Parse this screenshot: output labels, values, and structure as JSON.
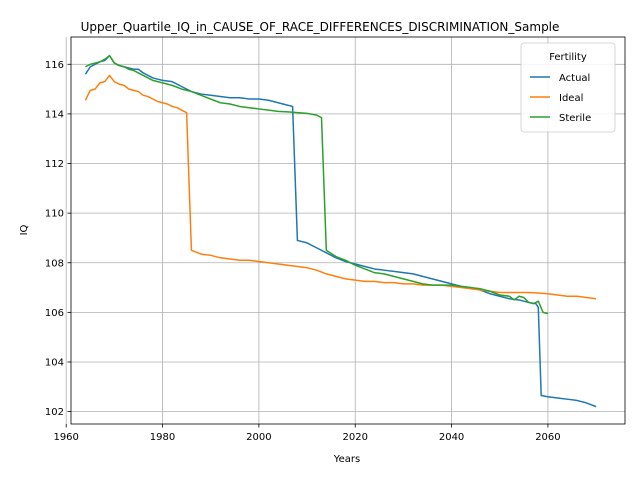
{
  "chart_data": {
    "type": "line",
    "title": "Upper_Quartile_IQ_in_CAUSE_OF_RACE_DIFFERENCES_DISCRIMINATION_Sample",
    "xlabel": "Years",
    "ylabel": "IQ",
    "xlim": [
      1961,
      2076
    ],
    "ylim": [
      101.5,
      117.1
    ],
    "xticks": [
      1960,
      1980,
      2000,
      2020,
      2040,
      2060
    ],
    "yticks": [
      102,
      104,
      106,
      108,
      110,
      112,
      114,
      116
    ],
    "grid": true,
    "legend": {
      "title": "Fertility",
      "placement": "top-right"
    },
    "series": [
      {
        "name": "Actual",
        "color": "#1f77b4",
        "points": [
          [
            1964,
            115.6
          ],
          [
            1965,
            115.9
          ],
          [
            1966,
            116.0
          ],
          [
            1967,
            116.1
          ],
          [
            1968,
            116.15
          ],
          [
            1969,
            116.35
          ],
          [
            1970,
            116.05
          ],
          [
            1971,
            115.95
          ],
          [
            1972,
            115.9
          ],
          [
            1973,
            115.85
          ],
          [
            1974,
            115.8
          ],
          [
            1975,
            115.8
          ],
          [
            1976,
            115.65
          ],
          [
            1977,
            115.55
          ],
          [
            1978,
            115.45
          ],
          [
            1979,
            115.4
          ],
          [
            1980,
            115.35
          ],
          [
            1982,
            115.3
          ],
          [
            1984,
            115.1
          ],
          [
            1986,
            114.9
          ],
          [
            1988,
            114.8
          ],
          [
            1990,
            114.75
          ],
          [
            1992,
            114.7
          ],
          [
            1994,
            114.65
          ],
          [
            1996,
            114.65
          ],
          [
            1998,
            114.6
          ],
          [
            2000,
            114.6
          ],
          [
            2002,
            114.55
          ],
          [
            2004,
            114.45
          ],
          [
            2006,
            114.35
          ],
          [
            2007,
            114.3
          ],
          [
            2008,
            108.9
          ],
          [
            2010,
            108.8
          ],
          [
            2012,
            108.6
          ],
          [
            2014,
            108.4
          ],
          [
            2016,
            108.2
          ],
          [
            2018,
            108.05
          ],
          [
            2020,
            107.95
          ],
          [
            2022,
            107.85
          ],
          [
            2024,
            107.75
          ],
          [
            2026,
            107.7
          ],
          [
            2028,
            107.65
          ],
          [
            2030,
            107.6
          ],
          [
            2032,
            107.55
          ],
          [
            2034,
            107.45
          ],
          [
            2036,
            107.35
          ],
          [
            2038,
            107.25
          ],
          [
            2040,
            107.15
          ],
          [
            2042,
            107.05
          ],
          [
            2044,
            107.0
          ],
          [
            2046,
            106.9
          ],
          [
            2048,
            106.75
          ],
          [
            2050,
            106.65
          ],
          [
            2052,
            106.55
          ],
          [
            2054,
            106.5
          ],
          [
            2056,
            106.4
          ],
          [
            2057.5,
            106.35
          ],
          [
            2058,
            106.2
          ],
          [
            2058.6,
            102.65
          ],
          [
            2060,
            102.6
          ],
          [
            2062,
            102.55
          ],
          [
            2064,
            102.5
          ],
          [
            2066,
            102.45
          ],
          [
            2068,
            102.35
          ],
          [
            2070,
            102.2
          ]
        ]
      },
      {
        "name": "Ideal",
        "color": "#ff7f0e",
        "points": [
          [
            1964,
            114.55
          ],
          [
            1965,
            114.95
          ],
          [
            1966,
            115.0
          ],
          [
            1967,
            115.25
          ],
          [
            1968,
            115.3
          ],
          [
            1969,
            115.55
          ],
          [
            1970,
            115.3
          ],
          [
            1971,
            115.2
          ],
          [
            1972,
            115.15
          ],
          [
            1973,
            115.0
          ],
          [
            1974,
            114.95
          ],
          [
            1975,
            114.9
          ],
          [
            1976,
            114.75
          ],
          [
            1977,
            114.7
          ],
          [
            1978,
            114.6
          ],
          [
            1979,
            114.5
          ],
          [
            1980,
            114.45
          ],
          [
            1981,
            114.4
          ],
          [
            1982,
            114.3
          ],
          [
            1983,
            114.25
          ],
          [
            1984,
            114.15
          ],
          [
            1985,
            114.05
          ],
          [
            1986,
            108.5
          ],
          [
            1988,
            108.35
          ],
          [
            1990,
            108.3
          ],
          [
            1992,
            108.2
          ],
          [
            1994,
            108.15
          ],
          [
            1996,
            108.1
          ],
          [
            1998,
            108.1
          ],
          [
            2000,
            108.05
          ],
          [
            2002,
            108.0
          ],
          [
            2004,
            107.95
          ],
          [
            2006,
            107.9
          ],
          [
            2008,
            107.85
          ],
          [
            2010,
            107.8
          ],
          [
            2012,
            107.7
          ],
          [
            2014,
            107.55
          ],
          [
            2016,
            107.45
          ],
          [
            2018,
            107.35
          ],
          [
            2020,
            107.3
          ],
          [
            2022,
            107.25
          ],
          [
            2024,
            107.25
          ],
          [
            2026,
            107.2
          ],
          [
            2028,
            107.2
          ],
          [
            2030,
            107.15
          ],
          [
            2032,
            107.15
          ],
          [
            2034,
            107.1
          ],
          [
            2036,
            107.1
          ],
          [
            2038,
            107.1
          ],
          [
            2040,
            107.05
          ],
          [
            2042,
            107.0
          ],
          [
            2044,
            106.95
          ],
          [
            2046,
            106.9
          ],
          [
            2048,
            106.85
          ],
          [
            2050,
            106.8
          ],
          [
            2052,
            106.8
          ],
          [
            2054,
            106.8
          ],
          [
            2056,
            106.8
          ],
          [
            2058,
            106.78
          ],
          [
            2060,
            106.75
          ],
          [
            2062,
            106.7
          ],
          [
            2064,
            106.65
          ],
          [
            2066,
            106.65
          ],
          [
            2068,
            106.6
          ],
          [
            2070,
            106.55
          ]
        ]
      },
      {
        "name": "Sterile",
        "color": "#2ca02c",
        "points": [
          [
            1964,
            115.9
          ],
          [
            1965,
            116.0
          ],
          [
            1966,
            116.05
          ],
          [
            1967,
            116.1
          ],
          [
            1968,
            116.2
          ],
          [
            1969,
            116.35
          ],
          [
            1970,
            116.05
          ],
          [
            1971,
            115.95
          ],
          [
            1972,
            115.9
          ],
          [
            1973,
            115.8
          ],
          [
            1974,
            115.75
          ],
          [
            1975,
            115.65
          ],
          [
            1976,
            115.55
          ],
          [
            1977,
            115.45
          ],
          [
            1978,
            115.35
          ],
          [
            1979,
            115.3
          ],
          [
            1980,
            115.25
          ],
          [
            1982,
            115.15
          ],
          [
            1984,
            115.0
          ],
          [
            1986,
            114.9
          ],
          [
            1988,
            114.75
          ],
          [
            1990,
            114.6
          ],
          [
            1992,
            114.45
          ],
          [
            1994,
            114.4
          ],
          [
            1996,
            114.3
          ],
          [
            1998,
            114.25
          ],
          [
            2000,
            114.2
          ],
          [
            2002,
            114.15
          ],
          [
            2004,
            114.1
          ],
          [
            2006,
            114.08
          ],
          [
            2008,
            114.05
          ],
          [
            2010,
            114.02
          ],
          [
            2012,
            113.95
          ],
          [
            2013,
            113.85
          ],
          [
            2014,
            108.5
          ],
          [
            2016,
            108.25
          ],
          [
            2018,
            108.1
          ],
          [
            2020,
            107.9
          ],
          [
            2022,
            107.75
          ],
          [
            2024,
            107.6
          ],
          [
            2026,
            107.55
          ],
          [
            2028,
            107.45
          ],
          [
            2030,
            107.35
          ],
          [
            2032,
            107.25
          ],
          [
            2034,
            107.15
          ],
          [
            2036,
            107.1
          ],
          [
            2038,
            107.1
          ],
          [
            2040,
            107.1
          ],
          [
            2042,
            107.05
          ],
          [
            2044,
            107.0
          ],
          [
            2046,
            106.95
          ],
          [
            2048,
            106.85
          ],
          [
            2050,
            106.7
          ],
          [
            2052,
            106.65
          ],
          [
            2053,
            106.5
          ],
          [
            2054,
            106.65
          ],
          [
            2055,
            106.6
          ],
          [
            2056,
            106.4
          ],
          [
            2057,
            106.35
          ],
          [
            2058,
            106.45
          ],
          [
            2059,
            106.0
          ],
          [
            2060,
            105.95
          ]
        ]
      }
    ]
  }
}
